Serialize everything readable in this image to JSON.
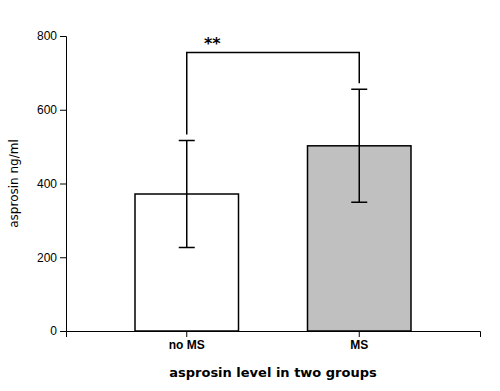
{
  "chart_data": {
    "type": "bar",
    "categories": [
      "no MS",
      "MS"
    ],
    "values": [
      371.5,
      502.2
    ],
    "errors": [
      144.9,
      153.3
    ],
    "colors": [
      "#ffffff",
      "#c0c0c0"
    ],
    "ylim": [
      0,
      800
    ],
    "yticks": [
      0,
      200,
      400,
      600,
      800
    ],
    "ylabel": "asprosin ng/ml",
    "xlabel": "asprosin level in two groups",
    "annotations": [
      "**"
    ],
    "grid": false
  }
}
